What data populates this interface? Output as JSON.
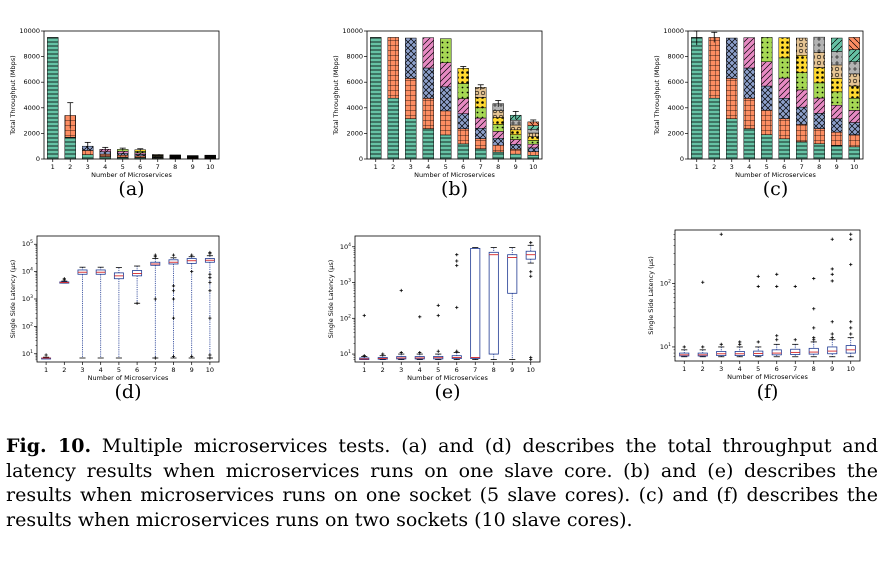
{
  "caption": {
    "label": "Fig. 10.",
    "text": "Multiple microservices tests. (a) and (d) describes the total throughput and latency results when microservices runs on one slave core. (b) and (e) describes the results when microservices runs on one socket (5 slave cores). (c) and (f) describes the results when microservices runs on two sockets (10 slave cores)."
  },
  "colors": [
    "#66c2a5",
    "#fc8d62",
    "#8da0cb",
    "#e78ac3",
    "#a6d854",
    "#ffd92f",
    "#e5c494",
    "#b3b3b3",
    "#66c2a5",
    "#fc8d62"
  ],
  "chart_data": [
    {
      "id": "a",
      "subfig_label": "(a)",
      "type": "bar",
      "stacked": true,
      "xlabel": "Number of Microservices",
      "ylabel": "Total Throughput (Mbps)",
      "categories": [
        "1",
        "2",
        "3",
        "4",
        "5",
        "6",
        "7",
        "8",
        "9",
        "10"
      ],
      "ylim": [
        0,
        10000
      ],
      "yticks": [
        0,
        2000,
        4000,
        6000,
        8000,
        10000
      ],
      "stacks": [
        [
          9500
        ],
        [
          1700,
          1700
        ],
        [
          340,
          330,
          330
        ],
        [
          190,
          190,
          190,
          190
        ],
        [
          150,
          150,
          150,
          150,
          150
        ],
        [
          120,
          120,
          120,
          120,
          120,
          120
        ],
        [
          50,
          50,
          50,
          50,
          50,
          50,
          50
        ],
        [
          40,
          40,
          40,
          40,
          40,
          40,
          40,
          40
        ],
        [
          30,
          30,
          30,
          30,
          30,
          30,
          30,
          30,
          30
        ],
        [
          30,
          30,
          30,
          30,
          30,
          30,
          30,
          30,
          30,
          30
        ]
      ],
      "errors": [
        0,
        1000,
        300,
        150,
        100,
        80,
        0,
        0,
        0,
        0
      ]
    },
    {
      "id": "b",
      "subfig_label": "(b)",
      "type": "bar",
      "stacked": true,
      "xlabel": "Number of Microservices",
      "ylabel": "Total Throughput (Mbps)",
      "categories": [
        "1",
        "2",
        "3",
        "4",
        "5",
        "6",
        "7",
        "8",
        "9",
        "10"
      ],
      "ylim": [
        0,
        10000
      ],
      "yticks": [
        0,
        2000,
        4000,
        6000,
        8000,
        10000
      ],
      "stacks": [
        [
          9500
        ],
        [
          4750,
          4750
        ],
        [
          3150,
          3150,
          3150
        ],
        [
          2370,
          2370,
          2370,
          2370
        ],
        [
          1880,
          1880,
          1880,
          1880,
          1880
        ],
        [
          1180,
          1180,
          1180,
          1180,
          1180,
          1180
        ],
        [
          800,
          800,
          800,
          800,
          800,
          800,
          800
        ],
        [
          540,
          540,
          540,
          540,
          540,
          540,
          540,
          540
        ],
        [
          380,
          380,
          380,
          380,
          380,
          380,
          380,
          380,
          380
        ],
        [
          290,
          290,
          290,
          290,
          290,
          290,
          290,
          290,
          290,
          290
        ]
      ],
      "errors": [
        0,
        0,
        0,
        0,
        0,
        150,
        200,
        250,
        300,
        150
      ]
    },
    {
      "id": "c",
      "subfig_label": "(c)",
      "type": "bar",
      "stacked": true,
      "xlabel": "Number of Microservices",
      "ylabel": "Total Throughput (Mbps)",
      "categories": [
        "1",
        "2",
        "3",
        "4",
        "5",
        "6",
        "7",
        "8",
        "9",
        "10"
      ],
      "ylim": [
        0,
        10000
      ],
      "yticks": [
        0,
        2000,
        4000,
        6000,
        8000,
        10000
      ],
      "stacks": [
        [
          9500
        ],
        [
          4750,
          4750
        ],
        [
          3150,
          3150,
          3150
        ],
        [
          2370,
          2370,
          2370,
          2370
        ],
        [
          1900,
          1900,
          1900,
          1900,
          1900
        ],
        [
          1580,
          1580,
          1580,
          1580,
          1580,
          1580
        ],
        [
          1350,
          1350,
          1350,
          1350,
          1350,
          1350,
          1350
        ],
        [
          1190,
          1190,
          1190,
          1190,
          1190,
          1190,
          1190,
          1190
        ],
        [
          1050,
          1050,
          1050,
          1050,
          1050,
          1050,
          1050,
          1050,
          1050
        ],
        [
          950,
          950,
          950,
          950,
          950,
          950,
          950,
          950,
          950,
          950
        ]
      ],
      "errors": [
        600,
        400,
        0,
        0,
        0,
        0,
        0,
        0,
        0,
        0
      ]
    },
    {
      "id": "d",
      "subfig_label": "(d)",
      "type": "box",
      "yscale": "log",
      "xlabel": "Number of Microservices",
      "ylabel": "Single Side Latency (μs)",
      "categories": [
        "1",
        "2",
        "3",
        "4",
        "5",
        "6",
        "7",
        "8",
        "9",
        "10"
      ],
      "ylim": [
        5,
        200000
      ],
      "yticks": [
        10,
        100,
        1000,
        10000,
        100000
      ],
      "boxes": [
        {
          "wlo": 7,
          "q1": 7,
          "med": 7,
          "q3": 7,
          "whi": 7.5,
          "fliers": [
            9
          ]
        },
        {
          "wlo": 3800,
          "q1": 3800,
          "med": 4000,
          "q3": 4200,
          "whi": 4500,
          "fliers": [
            5000,
            5500
          ]
        },
        {
          "wlo": 7,
          "q1": 8000,
          "med": 9500,
          "q3": 11500,
          "whi": 14500,
          "fliers": []
        },
        {
          "wlo": 7,
          "q1": 8000,
          "med": 9500,
          "q3": 11500,
          "whi": 14500,
          "fliers": []
        },
        {
          "wlo": 7,
          "q1": 5500,
          "med": 7000,
          "q3": 9000,
          "whi": 14000,
          "fliers": []
        },
        {
          "wlo": 700,
          "q1": 7000,
          "med": 8500,
          "q3": 11000,
          "whi": 16000,
          "fliers": [
            700
          ]
        },
        {
          "wlo": 7,
          "q1": 17000,
          "med": 19000,
          "q3": 22000,
          "whi": 30000,
          "fliers": [
            35000,
            40000,
            1000,
            7
          ]
        },
        {
          "wlo": 7,
          "q1": 19000,
          "med": 22000,
          "q3": 27000,
          "whi": 32000,
          "fliers": [
            40000,
            3000,
            2000,
            1000,
            200,
            8
          ]
        },
        {
          "wlo": 7,
          "q1": 20000,
          "med": 25000,
          "q3": 30000,
          "whi": 35000,
          "fliers": [
            40000,
            10000,
            8
          ]
        },
        {
          "wlo": 7,
          "q1": 22000,
          "med": 26000,
          "q3": 30000,
          "whi": 38000,
          "fliers": [
            50000,
            45000,
            8000,
            6000,
            4000,
            2000,
            200,
            9,
            7
          ]
        }
      ]
    },
    {
      "id": "e",
      "subfig_label": "(e)",
      "type": "box",
      "yscale": "log",
      "xlabel": "Number of Microservices",
      "ylabel": "Single Side Latency (μs)",
      "categories": [
        "1",
        "2",
        "3",
        "4",
        "5",
        "6",
        "7",
        "8",
        "9",
        "10"
      ],
      "ylim": [
        6,
        20000
      ],
      "yticks": [
        10,
        100,
        1000,
        10000
      ],
      "boxes": [
        {
          "wlo": 7,
          "q1": 7,
          "med": 7.3,
          "q3": 7.8,
          "whi": 8.5,
          "fliers": [
            120,
            9
          ]
        },
        {
          "wlo": 7,
          "q1": 7.2,
          "med": 7.5,
          "q3": 8,
          "whi": 9,
          "fliers": [
            10
          ]
        },
        {
          "wlo": 7,
          "q1": 7.3,
          "med": 7.8,
          "q3": 8.5,
          "whi": 10,
          "fliers": [
            600,
            11
          ]
        },
        {
          "wlo": 7,
          "q1": 7.3,
          "med": 7.8,
          "q3": 8.5,
          "whi": 10,
          "fliers": [
            110,
            11
          ]
        },
        {
          "wlo": 7,
          "q1": 7.3,
          "med": 7.9,
          "q3": 8.6,
          "whi": 10,
          "fliers": [
            230,
            120,
            12
          ]
        },
        {
          "wlo": 7,
          "q1": 7.5,
          "med": 8,
          "q3": 9,
          "whi": 11,
          "fliers": [
            6000,
            4000,
            3000,
            200,
            12
          ]
        },
        {
          "wlo": 7,
          "q1": 7.5,
          "med": 8,
          "q3": 9000,
          "whi": 9500,
          "fliers": []
        },
        {
          "wlo": 7,
          "q1": 10,
          "med": 6000,
          "q3": 7000,
          "whi": 9500,
          "fliers": []
        },
        {
          "wlo": 7,
          "q1": 500,
          "med": 5000,
          "q3": 6000,
          "whi": 9500,
          "fliers": []
        },
        {
          "wlo": 3500,
          "q1": 4500,
          "med": 6000,
          "q3": 7500,
          "whi": 11000,
          "fliers": [
            13000,
            2000,
            1500,
            8,
            7
          ]
        }
      ]
    },
    {
      "id": "f",
      "subfig_label": "(f)",
      "type": "box",
      "yscale": "log",
      "xlabel": "Number of Microservices",
      "ylabel": "Single Side Latency (μs)",
      "categories": [
        "1",
        "2",
        "3",
        "4",
        "5",
        "6",
        "7",
        "8",
        "9",
        "10"
      ],
      "ylim": [
        6,
        700
      ],
      "yticks": [
        10,
        100
      ],
      "boxes": [
        {
          "wlo": 7,
          "q1": 7.2,
          "med": 7.5,
          "q3": 8,
          "whi": 9,
          "fliers": [
            10
          ]
        },
        {
          "wlo": 7,
          "q1": 7.2,
          "med": 7.5,
          "q3": 8,
          "whi": 9,
          "fliers": [
            105,
            10
          ]
        },
        {
          "wlo": 7,
          "q1": 7.3,
          "med": 7.8,
          "q3": 8.5,
          "whi": 10,
          "fliers": [
            600,
            11
          ]
        },
        {
          "wlo": 7,
          "q1": 7.3,
          "med": 7.8,
          "q3": 8.5,
          "whi": 10,
          "fliers": [
            11,
            12
          ]
        },
        {
          "wlo": 7,
          "q1": 7.3,
          "med": 7.9,
          "q3": 8.6,
          "whi": 10,
          "fliers": [
            130,
            90,
            12
          ]
        },
        {
          "wlo": 7,
          "q1": 7.5,
          "med": 8,
          "q3": 9,
          "whi": 11,
          "fliers": [
            140,
            90,
            13,
            15
          ]
        },
        {
          "wlo": 7,
          "q1": 7.6,
          "med": 8.2,
          "q3": 9.2,
          "whi": 11,
          "fliers": [
            90,
            13
          ]
        },
        {
          "wlo": 7,
          "q1": 7.7,
          "med": 8.3,
          "q3": 9.5,
          "whi": 12,
          "fliers": [
            120,
            40,
            20,
            14,
            13
          ]
        },
        {
          "wlo": 7,
          "q1": 7.8,
          "med": 8.6,
          "q3": 10,
          "whi": 13,
          "fliers": [
            500,
            170,
            140,
            110,
            25,
            16,
            14
          ]
        },
        {
          "wlo": 7,
          "q1": 8,
          "med": 9,
          "q3": 10.5,
          "whi": 14,
          "fliers": [
            600,
            500,
            200,
            25,
            20,
            16
          ]
        }
      ]
    }
  ]
}
